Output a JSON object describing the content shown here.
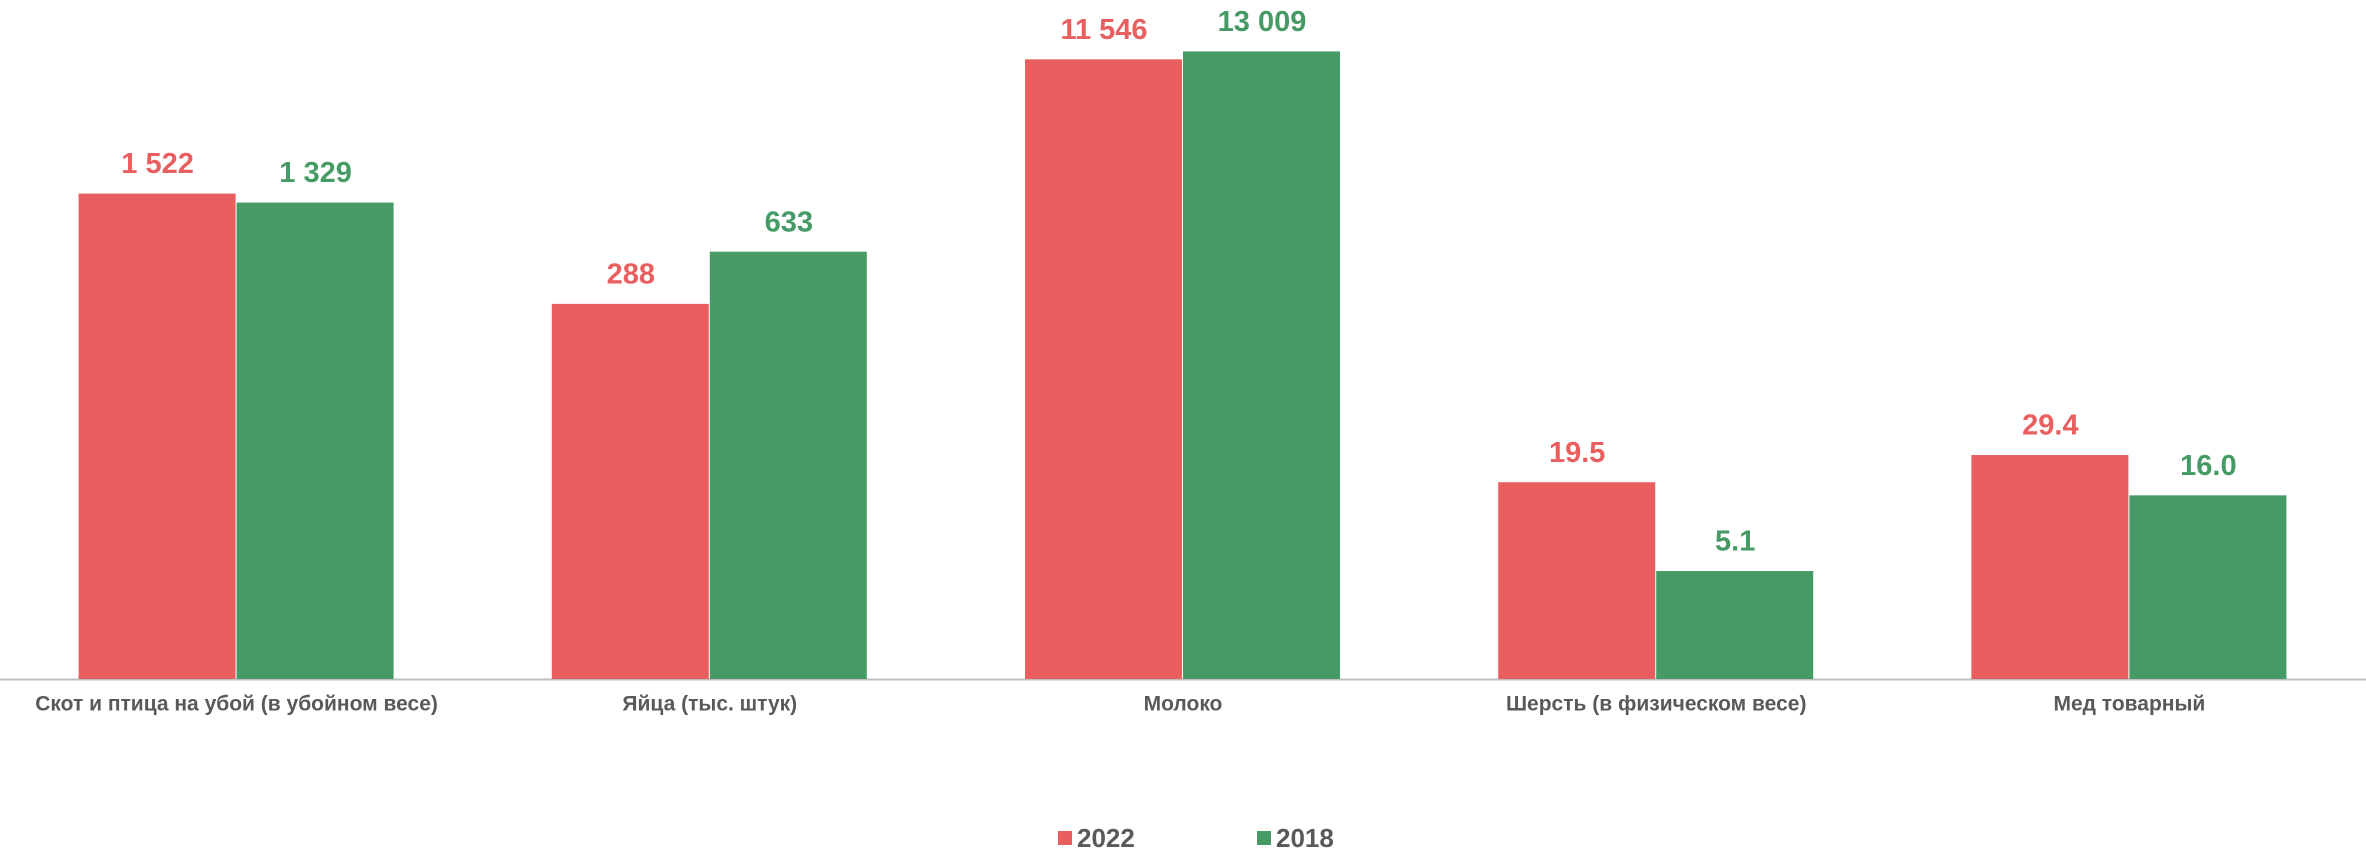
{
  "chart_data": {
    "type": "bar",
    "categories": [
      "Скот и птица на убой (в убойном весе)",
      "Яйца (тыс. штук)",
      "Молоко",
      "Шерсть (в физическом весе)",
      "Мед товарный"
    ],
    "series": [
      {
        "name": "2022",
        "color": "#e95f60",
        "values": [
          1522,
          288,
          11546,
          19.5,
          29.4
        ],
        "value_labels": [
          "1 522",
          "288",
          "11 546",
          "19.5",
          "29.4"
        ]
      },
      {
        "name": "2018",
        "color": "#459a66",
        "values": [
          1329,
          633,
          13009,
          5.1,
          16
        ],
        "value_labels": [
          "1 329",
          "633",
          "13 009",
          "5.1",
          "16.0"
        ]
      }
    ],
    "log_scale": true,
    "ylim": [
      1,
      15000
    ],
    "legend": "bottom"
  }
}
